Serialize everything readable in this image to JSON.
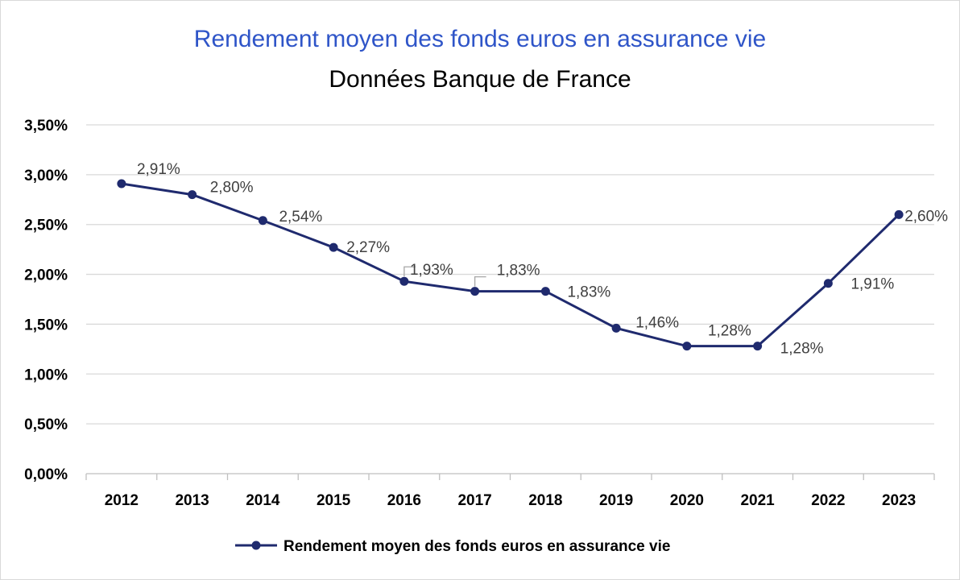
{
  "chart_data": {
    "type": "line",
    "title": "Rendement moyen des fonds euros en assurance vie",
    "subtitle": "Données Banque de France",
    "xlabel": "",
    "ylabel": "",
    "categories": [
      "2012",
      "2013",
      "2014",
      "2015",
      "2016",
      "2017",
      "2018",
      "2019",
      "2020",
      "2021",
      "2022",
      "2023"
    ],
    "series": [
      {
        "name": "Rendement moyen des fonds euros en assurance vie",
        "values": [
          2.91,
          2.8,
          2.54,
          2.27,
          1.93,
          1.83,
          1.83,
          1.46,
          1.28,
          1.28,
          1.91,
          2.6
        ],
        "labels": [
          "2,91%",
          "2,80%",
          "2,54%",
          "2,27%",
          "1,93%",
          "1,83%",
          "1,83%",
          "1,46%",
          "1,28%",
          "1,28%",
          "1,91%",
          "2,60%"
        ],
        "color": "#1f2a6e"
      }
    ],
    "ylim": [
      0,
      3.5
    ],
    "yticks": [
      "0,00%",
      "0,50%",
      "1,00%",
      "1,50%",
      "2,00%",
      "2,50%",
      "3,00%",
      "3,50%"
    ],
    "grid": true,
    "legend": "bottom"
  }
}
